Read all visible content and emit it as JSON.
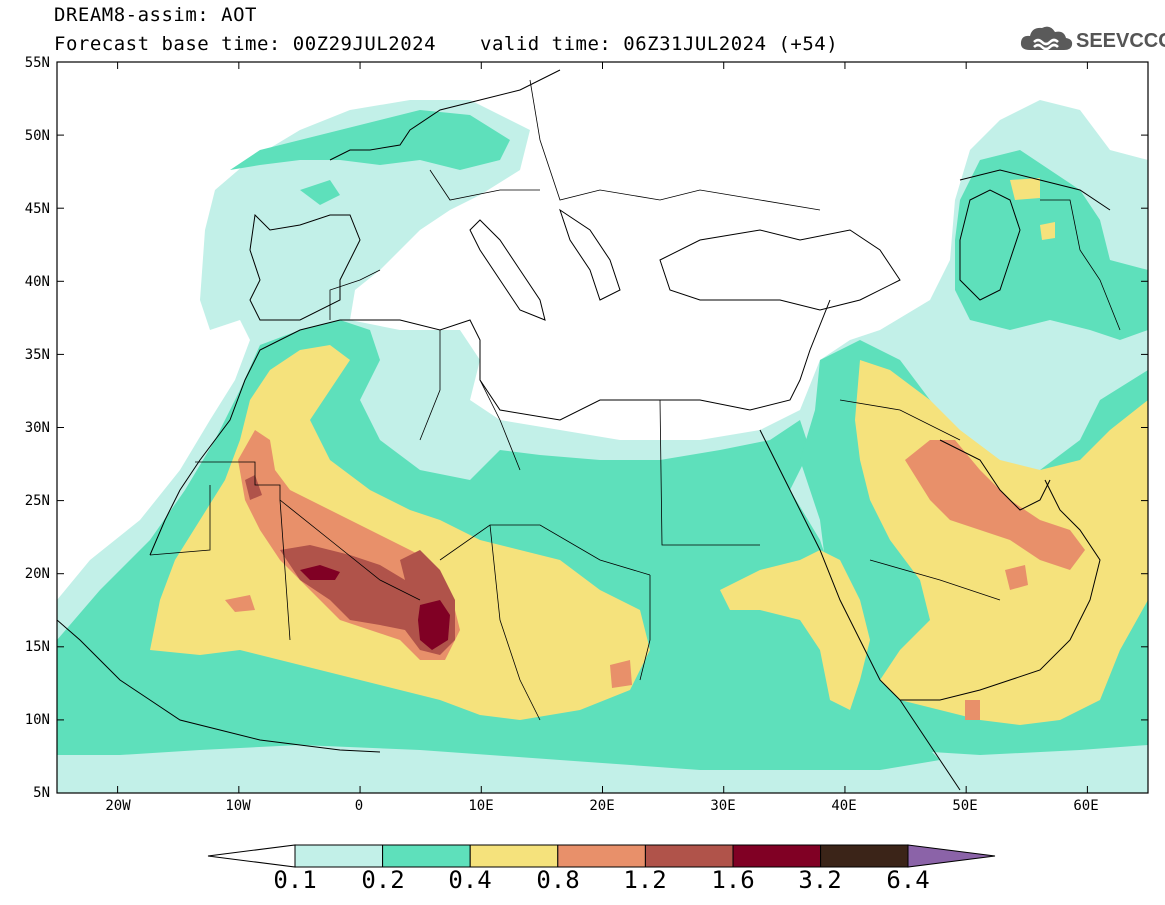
{
  "header": {
    "title": "DREAM8-assim: AOT",
    "base_time": "Forecast base time: 00Z29JUL2024",
    "valid_time": "valid time: 06Z31JUL2024 (+54)"
  },
  "logo": {
    "icon": "cloud-icon",
    "text": "SEEVCCC"
  },
  "map": {
    "lat_labels": [
      "55N",
      "50N",
      "45N",
      "40N",
      "35N",
      "30N",
      "25N",
      "20N",
      "15N",
      "10N",
      "5N"
    ],
    "lon_labels": [
      "20W",
      "10W",
      "0",
      "10E",
      "20E",
      "30E",
      "40E",
      "50E",
      "60E"
    ],
    "lat_range": [
      5,
      55
    ],
    "lon_range": [
      -25,
      65
    ]
  },
  "colorbar": {
    "levels": [
      "0.1",
      "0.2",
      "0.4",
      "0.8",
      "1.2",
      "1.6",
      "3.2",
      "6.4"
    ],
    "colors": [
      "#c2f0e8",
      "#5ee0bb",
      "#f5e27c",
      "#e8906a",
      "#b0534a",
      "#800024",
      "#3b2418",
      "#8b63a8"
    ]
  }
}
